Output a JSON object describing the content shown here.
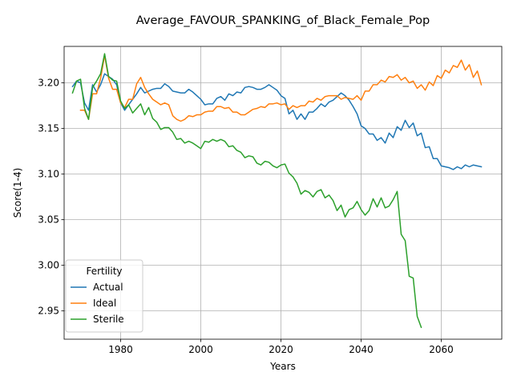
{
  "chart_data": {
    "type": "line",
    "title": "Average_FAVOUR_SPANKING_of_Black_Female_Pop",
    "xlabel": "Years",
    "ylabel": "Score(1-4)",
    "xlim": [
      1965.9,
      2075.1
    ],
    "ylim": [
      2.919,
      3.24
    ],
    "xticks": [
      1980,
      2000,
      2020,
      2040,
      2060
    ],
    "yticks": [
      2.95,
      3.0,
      3.05,
      3.1,
      3.15,
      3.2
    ],
    "ytick_labels": [
      "2.95",
      "3.00",
      "3.05",
      "3.10",
      "3.15",
      "3.20"
    ],
    "grid": true,
    "legend": {
      "title": "Fertility",
      "position": "lower-left"
    },
    "series": [
      {
        "name": "Actual",
        "color": "#1f77b4",
        "points": [
          [
            1968,
            3.196
          ],
          [
            1969,
            3.202
          ],
          [
            1970,
            3.2
          ],
          [
            1971,
            3.178
          ],
          [
            1972,
            3.17
          ],
          [
            1973,
            3.198
          ],
          [
            1974,
            3.19
          ],
          [
            1975,
            3.198
          ],
          [
            1976,
            3.21
          ],
          [
            1977,
            3.207
          ],
          [
            1978,
            3.204
          ],
          [
            1979,
            3.198
          ],
          [
            1980,
            3.178
          ],
          [
            1981,
            3.17
          ],
          [
            1982,
            3.176
          ],
          [
            1983,
            3.182
          ],
          [
            1984,
            3.188
          ],
          [
            1985,
            3.195
          ],
          [
            1986,
            3.189
          ],
          [
            1987,
            3.191
          ],
          [
            1988,
            3.193
          ],
          [
            1989,
            3.194
          ],
          [
            1990,
            3.194
          ],
          [
            1991,
            3.199
          ],
          [
            1992,
            3.196
          ],
          [
            1993,
            3.191
          ],
          [
            1994,
            3.19
          ],
          [
            1995,
            3.189
          ],
          [
            1996,
            3.189
          ],
          [
            1997,
            3.193
          ],
          [
            1998,
            3.19
          ],
          [
            1999,
            3.186
          ],
          [
            2000,
            3.182
          ],
          [
            2001,
            3.176
          ],
          [
            2002,
            3.177
          ],
          [
            2003,
            3.177
          ],
          [
            2004,
            3.183
          ],
          [
            2005,
            3.185
          ],
          [
            2006,
            3.181
          ],
          [
            2007,
            3.188
          ],
          [
            2008,
            3.186
          ],
          [
            2009,
            3.19
          ],
          [
            2010,
            3.189
          ],
          [
            2011,
            3.195
          ],
          [
            2012,
            3.196
          ],
          [
            2013,
            3.195
          ],
          [
            2014,
            3.193
          ],
          [
            2015,
            3.193
          ],
          [
            2016,
            3.195
          ],
          [
            2017,
            3.198
          ],
          [
            2018,
            3.195
          ],
          [
            2019,
            3.192
          ],
          [
            2020,
            3.186
          ],
          [
            2021,
            3.183
          ],
          [
            2022,
            3.166
          ],
          [
            2023,
            3.17
          ],
          [
            2024,
            3.16
          ],
          [
            2025,
            3.166
          ],
          [
            2026,
            3.16
          ],
          [
            2027,
            3.168
          ],
          [
            2028,
            3.168
          ],
          [
            2029,
            3.172
          ],
          [
            2030,
            3.177
          ],
          [
            2031,
            3.174
          ],
          [
            2032,
            3.179
          ],
          [
            2033,
            3.181
          ],
          [
            2034,
            3.185
          ],
          [
            2035,
            3.189
          ],
          [
            2036,
            3.186
          ],
          [
            2037,
            3.181
          ],
          [
            2038,
            3.174
          ],
          [
            2039,
            3.166
          ],
          [
            2040,
            3.153
          ],
          [
            2041,
            3.15
          ],
          [
            2042,
            3.144
          ],
          [
            2043,
            3.144
          ],
          [
            2044,
            3.137
          ],
          [
            2045,
            3.14
          ],
          [
            2046,
            3.134
          ],
          [
            2047,
            3.145
          ],
          [
            2048,
            3.14
          ],
          [
            2049,
            3.152
          ],
          [
            2050,
            3.148
          ],
          [
            2051,
            3.159
          ],
          [
            2052,
            3.151
          ],
          [
            2053,
            3.156
          ],
          [
            2054,
            3.142
          ],
          [
            2055,
            3.145
          ],
          [
            2056,
            3.129
          ],
          [
            2057,
            3.13
          ],
          [
            2058,
            3.117
          ],
          [
            2059,
            3.117
          ],
          [
            2060,
            3.109
          ],
          [
            2061,
            3.108
          ],
          [
            2062,
            3.107
          ],
          [
            2063,
            3.105
          ],
          [
            2064,
            3.108
          ],
          [
            2065,
            3.106
          ],
          [
            2066,
            3.11
          ],
          [
            2067,
            3.108
          ],
          [
            2068,
            3.11
          ],
          [
            2069,
            3.109
          ],
          [
            2070,
            3.108
          ]
        ]
      },
      {
        "name": "Ideal",
        "color": "#ff7f0e",
        "points": [
          [
            1970,
            3.17
          ],
          [
            1971,
            3.17
          ],
          [
            1972,
            3.16
          ],
          [
            1973,
            3.188
          ],
          [
            1974,
            3.188
          ],
          [
            1975,
            3.205
          ],
          [
            1976,
            3.23
          ],
          [
            1977,
            3.205
          ],
          [
            1978,
            3.193
          ],
          [
            1979,
            3.193
          ],
          [
            1980,
            3.178
          ],
          [
            1981,
            3.173
          ],
          [
            1982,
            3.182
          ],
          [
            1983,
            3.182
          ],
          [
            1984,
            3.199
          ],
          [
            1985,
            3.206
          ],
          [
            1986,
            3.195
          ],
          [
            1987,
            3.188
          ],
          [
            1988,
            3.182
          ],
          [
            1989,
            3.179
          ],
          [
            1990,
            3.176
          ],
          [
            1991,
            3.178
          ],
          [
            1992,
            3.176
          ],
          [
            1993,
            3.164
          ],
          [
            1994,
            3.16
          ],
          [
            1995,
            3.158
          ],
          [
            1996,
            3.16
          ],
          [
            1997,
            3.164
          ],
          [
            1998,
            3.163
          ],
          [
            1999,
            3.165
          ],
          [
            2000,
            3.165
          ],
          [
            2001,
            3.168
          ],
          [
            2002,
            3.169
          ],
          [
            2003,
            3.169
          ],
          [
            2004,
            3.174
          ],
          [
            2005,
            3.174
          ],
          [
            2006,
            3.172
          ],
          [
            2007,
            3.173
          ],
          [
            2008,
            3.168
          ],
          [
            2009,
            3.168
          ],
          [
            2010,
            3.165
          ],
          [
            2011,
            3.165
          ],
          [
            2012,
            3.168
          ],
          [
            2013,
            3.171
          ],
          [
            2014,
            3.172
          ],
          [
            2015,
            3.174
          ],
          [
            2016,
            3.173
          ],
          [
            2017,
            3.177
          ],
          [
            2018,
            3.177
          ],
          [
            2019,
            3.178
          ],
          [
            2020,
            3.176
          ],
          [
            2021,
            3.177
          ],
          [
            2022,
            3.171
          ],
          [
            2023,
            3.175
          ],
          [
            2024,
            3.173
          ],
          [
            2025,
            3.175
          ],
          [
            2026,
            3.175
          ],
          [
            2027,
            3.18
          ],
          [
            2028,
            3.179
          ],
          [
            2029,
            3.183
          ],
          [
            2030,
            3.181
          ],
          [
            2031,
            3.185
          ],
          [
            2032,
            3.186
          ],
          [
            2033,
            3.186
          ],
          [
            2034,
            3.186
          ],
          [
            2035,
            3.182
          ],
          [
            2036,
            3.184
          ],
          [
            2037,
            3.183
          ],
          [
            2038,
            3.182
          ],
          [
            2039,
            3.186
          ],
          [
            2040,
            3.181
          ],
          [
            2041,
            3.191
          ],
          [
            2042,
            3.191
          ],
          [
            2043,
            3.198
          ],
          [
            2044,
            3.198
          ],
          [
            2045,
            3.203
          ],
          [
            2046,
            3.201
          ],
          [
            2047,
            3.207
          ],
          [
            2048,
            3.206
          ],
          [
            2049,
            3.209
          ],
          [
            2050,
            3.203
          ],
          [
            2051,
            3.206
          ],
          [
            2052,
            3.2
          ],
          [
            2053,
            3.202
          ],
          [
            2054,
            3.194
          ],
          [
            2055,
            3.198
          ],
          [
            2056,
            3.192
          ],
          [
            2057,
            3.201
          ],
          [
            2058,
            3.197
          ],
          [
            2059,
            3.208
          ],
          [
            2060,
            3.205
          ],
          [
            2061,
            3.214
          ],
          [
            2062,
            3.211
          ],
          [
            2063,
            3.219
          ],
          [
            2064,
            3.217
          ],
          [
            2065,
            3.225
          ],
          [
            2066,
            3.214
          ],
          [
            2067,
            3.22
          ],
          [
            2068,
            3.206
          ],
          [
            2069,
            3.213
          ],
          [
            2070,
            3.198
          ]
        ]
      },
      {
        "name": "Sterile",
        "color": "#2ca02c",
        "points": [
          [
            1968,
            3.189
          ],
          [
            1969,
            3.202
          ],
          [
            1970,
            3.204
          ],
          [
            1971,
            3.172
          ],
          [
            1972,
            3.16
          ],
          [
            1973,
            3.195
          ],
          [
            1974,
            3.202
          ],
          [
            1975,
            3.21
          ],
          [
            1976,
            3.232
          ],
          [
            1977,
            3.207
          ],
          [
            1978,
            3.203
          ],
          [
            1979,
            3.202
          ],
          [
            1980,
            3.18
          ],
          [
            1981,
            3.172
          ],
          [
            1982,
            3.176
          ],
          [
            1983,
            3.167
          ],
          [
            1984,
            3.172
          ],
          [
            1985,
            3.177
          ],
          [
            1986,
            3.165
          ],
          [
            1987,
            3.173
          ],
          [
            1988,
            3.161
          ],
          [
            1989,
            3.157
          ],
          [
            1990,
            3.149
          ],
          [
            1991,
            3.151
          ],
          [
            1992,
            3.151
          ],
          [
            1993,
            3.146
          ],
          [
            1994,
            3.138
          ],
          [
            1995,
            3.139
          ],
          [
            1996,
            3.134
          ],
          [
            1997,
            3.136
          ],
          [
            1998,
            3.134
          ],
          [
            1999,
            3.131
          ],
          [
            2000,
            3.128
          ],
          [
            2001,
            3.136
          ],
          [
            2002,
            3.135
          ],
          [
            2003,
            3.138
          ],
          [
            2004,
            3.136
          ],
          [
            2005,
            3.138
          ],
          [
            2006,
            3.136
          ],
          [
            2007,
            3.13
          ],
          [
            2008,
            3.131
          ],
          [
            2009,
            3.126
          ],
          [
            2010,
            3.124
          ],
          [
            2011,
            3.118
          ],
          [
            2012,
            3.12
          ],
          [
            2013,
            3.119
          ],
          [
            2014,
            3.112
          ],
          [
            2015,
            3.11
          ],
          [
            2016,
            3.114
          ],
          [
            2017,
            3.113
          ],
          [
            2018,
            3.109
          ],
          [
            2019,
            3.107
          ],
          [
            2020,
            3.11
          ],
          [
            2021,
            3.111
          ],
          [
            2022,
            3.101
          ],
          [
            2023,
            3.097
          ],
          [
            2024,
            3.09
          ],
          [
            2025,
            3.078
          ],
          [
            2026,
            3.082
          ],
          [
            2027,
            3.08
          ],
          [
            2028,
            3.075
          ],
          [
            2029,
            3.081
          ],
          [
            2030,
            3.083
          ],
          [
            2031,
            3.074
          ],
          [
            2032,
            3.077
          ],
          [
            2033,
            3.071
          ],
          [
            2034,
            3.06
          ],
          [
            2035,
            3.066
          ],
          [
            2036,
            3.053
          ],
          [
            2037,
            3.061
          ],
          [
            2038,
            3.063
          ],
          [
            2039,
            3.07
          ],
          [
            2040,
            3.061
          ],
          [
            2041,
            3.055
          ],
          [
            2042,
            3.06
          ],
          [
            2043,
            3.073
          ],
          [
            2044,
            3.064
          ],
          [
            2045,
            3.074
          ],
          [
            2046,
            3.063
          ],
          [
            2047,
            3.065
          ],
          [
            2048,
            3.072
          ],
          [
            2049,
            3.081
          ],
          [
            2050,
            3.034
          ],
          [
            2051,
            3.027
          ],
          [
            2052,
            2.988
          ],
          [
            2053,
            2.986
          ],
          [
            2054,
            2.944
          ],
          [
            2055,
            2.932
          ]
        ]
      }
    ]
  }
}
